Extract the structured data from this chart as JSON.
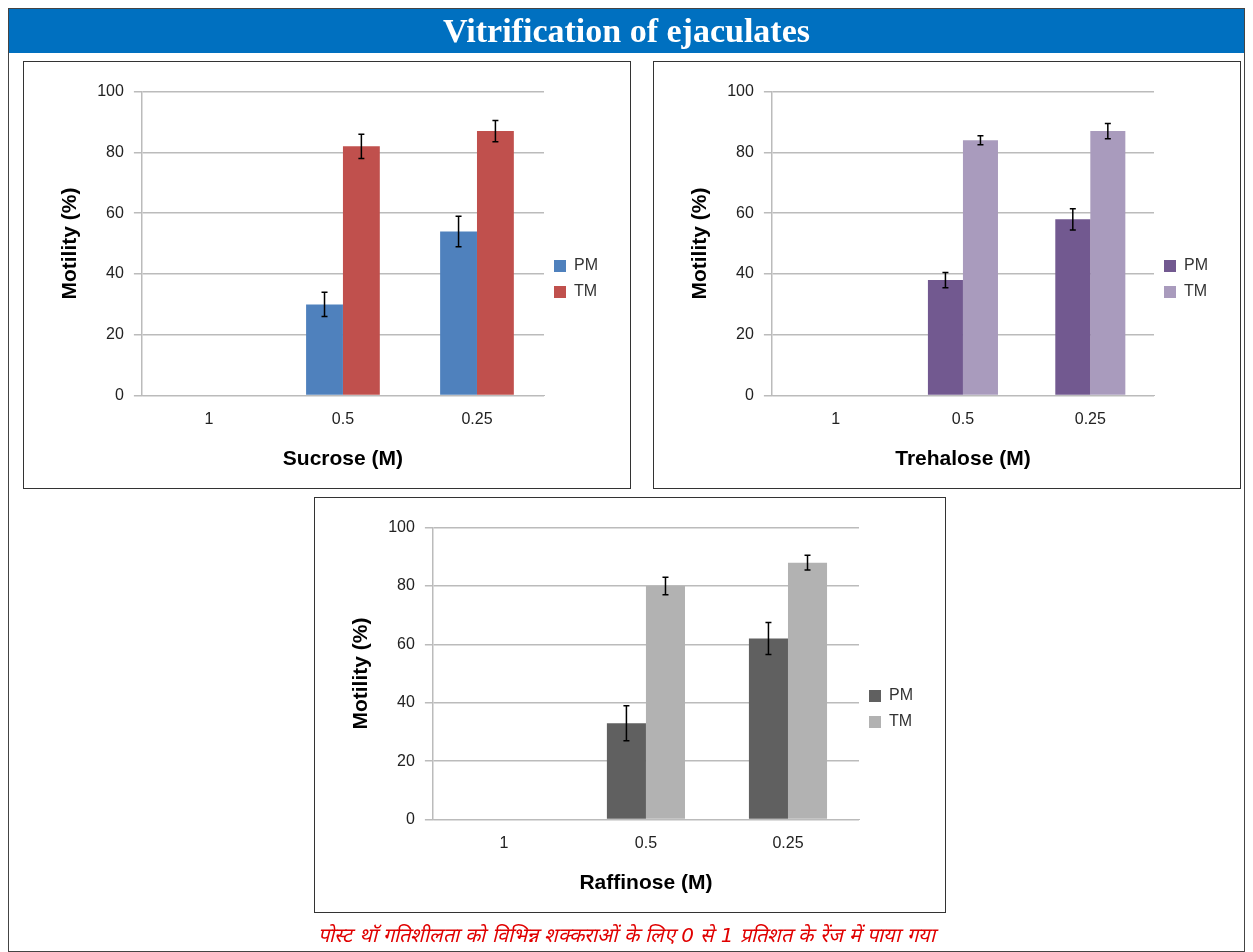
{
  "chart_data": [
    {
      "type": "bar",
      "title": "Vitrification of ejaculates",
      "categories": [
        "1",
        "0.5",
        "0.25"
      ],
      "xlabel": "Sucrose (M)",
      "ylabel": "Motility (%)",
      "ylim": [
        0,
        100
      ],
      "yticks": [
        0,
        20,
        40,
        60,
        80,
        100
      ],
      "grid": "y",
      "legend": "right",
      "series": [
        {
          "name": "PM",
          "color": "#4f81bd",
          "values": [
            0,
            30,
            54
          ],
          "errors": [
            null,
            4,
            5
          ]
        },
        {
          "name": "TM",
          "color": "#c0504d",
          "values": [
            0,
            82,
            87
          ],
          "errors": [
            null,
            4,
            3.5
          ]
        }
      ]
    },
    {
      "type": "bar",
      "categories": [
        "1",
        "0.5",
        "0.25"
      ],
      "xlabel": "Trehalose (M)",
      "ylabel": "Motility (%)",
      "ylim": [
        0,
        100
      ],
      "yticks": [
        0,
        20,
        40,
        60,
        80,
        100
      ],
      "grid": "y",
      "legend": "right",
      "series": [
        {
          "name": "PM",
          "color": "#725990",
          "values": [
            0,
            38,
            58
          ],
          "errors": [
            null,
            2.5,
            3.5
          ]
        },
        {
          "name": "TM",
          "color": "#a99bbd",
          "values": [
            0,
            84,
            87
          ],
          "errors": [
            null,
            1.5,
            2.5
          ]
        }
      ]
    },
    {
      "type": "bar",
      "categories": [
        "1",
        "0.5",
        "0.25"
      ],
      "xlabel": "Raffinose (M)",
      "ylabel": "Motility (%)",
      "ylim": [
        0,
        100
      ],
      "yticks": [
        0,
        20,
        40,
        60,
        80,
        100
      ],
      "grid": "y",
      "legend": "right",
      "annotations": [
        "पोस्ट थॉ गतिशीलता को विभिन्न शक्कराओं के लिए 0 से 1 प्रतिशत के रेंज में पाया गया"
      ],
      "series": [
        {
          "name": "PM",
          "color": "#606060",
          "values": [
            0,
            33,
            62
          ],
          "errors": [
            null,
            6,
            5.5
          ]
        },
        {
          "name": "TM",
          "color": "#b2b2b2",
          "values": [
            0,
            80,
            88
          ],
          "errors": [
            null,
            3,
            2.5
          ]
        }
      ]
    }
  ]
}
